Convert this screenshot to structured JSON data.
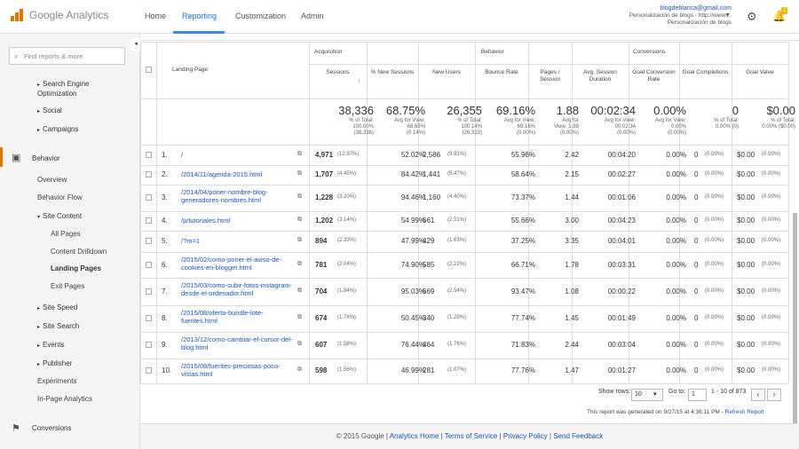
{
  "app": {
    "name_google": "Google",
    "name_product": "Analytics"
  },
  "nav": {
    "home": "Home",
    "reporting": "Reporting",
    "customization": "Customization",
    "admin": "Admin"
  },
  "account": {
    "email": "blogdeblanca@gmail.com",
    "line2": "Personalización de blogs - http://www....",
    "line3": "Personalización de blogs"
  },
  "badge": "2",
  "search": {
    "placeholder": "Find reports & more"
  },
  "sidebar": {
    "landing_pages_section": "Search Engine Optimization",
    "social": "Social",
    "campaigns": "Campaigns",
    "behavior": "Behavior",
    "overview": "Overview",
    "behavior_flow": "Behavior Flow",
    "site_content": "Site Content",
    "all_pages": "All Pages",
    "content_drilldown": "Content Drilldown",
    "landing_pages": "Landing Pages",
    "exit_pages": "Exit Pages",
    "site_speed": "Site Speed",
    "site_search": "Site Search",
    "events": "Events",
    "publisher": "Publisher",
    "experiments": "Experiments",
    "in_page": "In-Page Analytics",
    "conversions": "Conversions"
  },
  "table": {
    "groups": {
      "acquisition": "Acquisition",
      "behavior": "Behavior",
      "conversions": "Conversions"
    },
    "headers": {
      "landing_page": "Landing Page",
      "sessions": "Sessions",
      "new_sessions": "% New Sessions",
      "new_users": "New Users",
      "bounce": "Bounce Rate",
      "pages": "Pages / Session",
      "duration": "Avg. Session Duration",
      "conv_rate": "Goal Conversion Rate",
      "completions": "Goal Completions",
      "value": "Goal Value"
    },
    "totals": [
      {
        "big": "38,336",
        "s1": "% of Total:",
        "s2": "100.00%",
        "s3": "(38,336)"
      },
      {
        "big": "68.75%",
        "s1": "Avg for View:",
        "s2": "68.65%",
        "s3": "(0.14%)"
      },
      {
        "big": "26,355",
        "s1": "% of Total:",
        "s2": "100.14%",
        "s3": "(26,319)"
      },
      {
        "big": "69.16%",
        "s1": "Avg for View:",
        "s2": "69.16%",
        "s3": "(0.00%)"
      },
      {
        "big": "1.88",
        "s1": "Avg for",
        "s2": "View: 1.88",
        "s3": "(0.00%)"
      },
      {
        "big": "00:02:34",
        "s1": "Avg for View:",
        "s2": "00:02:34",
        "s3": "(0.00%)"
      },
      {
        "big": "0.00%",
        "s1": "Avg for View:",
        "s2": "0.00%",
        "s3": "(0.00%)"
      },
      {
        "big": "0",
        "s1": "% of Total:",
        "s2": "0.00% (0)",
        "s3": ""
      },
      {
        "big": "$0.00",
        "s1": "% of Total:",
        "s2": "0.00% ($0.00)",
        "s3": ""
      }
    ],
    "rows": [
      {
        "n": "1.",
        "page": "/",
        "sess": "4,971",
        "sp": "(12.97%)",
        "ns": "52.02%",
        "nu": "2,586",
        "np": "(9.81%)",
        "br": "55.96%",
        "ps": "2.42",
        "dur": "00:04:20"
      },
      {
        "n": "2.",
        "page": "/2014/11/agenda-2015.html",
        "sess": "1,707",
        "sp": "(4.45%)",
        "ns": "84.42%",
        "nu": "1,441",
        "np": "(5.47%)",
        "br": "58.64%",
        "ps": "2.15",
        "dur": "00:02:27"
      },
      {
        "n": "3.",
        "page": "/2014/04/poner-nombre-blog-generadores-nombres.html",
        "sess": "1,228",
        "sp": "(3.20%)",
        "ns": "94.46%",
        "nu": "1,160",
        "np": "(4.40%)",
        "br": "73.37%",
        "ps": "1.44",
        "dur": "00:01:06"
      },
      {
        "n": "4.",
        "page": "/p/tutoriales.html",
        "sess": "1,202",
        "sp": "(3.14%)",
        "ns": "54.99%",
        "nu": "661",
        "np": "(2.51%)",
        "br": "55.66%",
        "ps": "3.00",
        "dur": "00:04:23"
      },
      {
        "n": "5.",
        "page": "/?m=1",
        "sess": "894",
        "sp": "(2.33%)",
        "ns": "47.99%",
        "nu": "429",
        "np": "(1.63%)",
        "br": "37.25%",
        "ps": "3.35",
        "dur": "00:04:01"
      },
      {
        "n": "6.",
        "page": "/2015/02/como-poner-el-aviso-de-cookies-en-blogger.html",
        "sess": "781",
        "sp": "(2.04%)",
        "ns": "74.90%",
        "nu": "585",
        "np": "(2.22%)",
        "br": "66.71%",
        "ps": "1.78",
        "dur": "00:03:31"
      },
      {
        "n": "7.",
        "page": "/2015/03/como-subir-fotos-instagram-desde-el-ordenador.html",
        "sess": "704",
        "sp": "(1.84%)",
        "ns": "95.03%",
        "nu": "669",
        "np": "(2.54%)",
        "br": "93.47%",
        "ps": "1.08",
        "dur": "00:00:22"
      },
      {
        "n": "8.",
        "page": "/2015/08/oferta-bundle-lote-fuentes.html",
        "sess": "674",
        "sp": "(1.76%)",
        "ns": "50.45%",
        "nu": "340",
        "np": "(1.29%)",
        "br": "77.74%",
        "ps": "1.45",
        "dur": "00:01:49"
      },
      {
        "n": "9.",
        "page": "/2013/12/como-cambiar-el-cursor-del-blog.html",
        "sess": "607",
        "sp": "(1.58%)",
        "ns": "76.44%",
        "nu": "464",
        "np": "(1.76%)",
        "br": "71.83%",
        "ps": "2.44",
        "dur": "00:03:04"
      },
      {
        "n": "10.",
        "page": "/2015/08/fuentes-preciosas-poco-vistas.html",
        "sess": "598",
        "sp": "(1.56%)",
        "ns": "46.99%",
        "nu": "281",
        "np": "(1.07%)",
        "br": "77.76%",
        "ps": "1.47",
        "dur": "00:01:27"
      }
    ],
    "conv": {
      "rate": "0.00%",
      "comp": "0",
      "comp_p": "(0.00%)",
      "val": "$0.00",
      "val_p": "(0.00%)"
    }
  },
  "pager": {
    "show_rows": "Show rows:",
    "rows_value": "10",
    "goto": "Go to:",
    "goto_value": "1",
    "range": "1 - 10 of 873"
  },
  "generated": {
    "text": "This report was generated on 9/27/15 at 4:36:11 PM -",
    "refresh": "Refresh Report"
  },
  "footer": {
    "copy": "© 2015 Google |",
    "home": "Analytics Home",
    "terms": "Terms of Service",
    "privacy": "Privacy Policy",
    "feedback": "Send Feedback",
    "sep": "|"
  }
}
